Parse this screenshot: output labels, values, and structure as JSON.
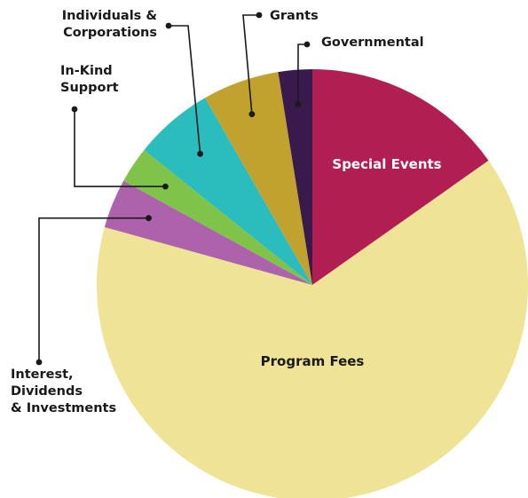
{
  "chart_data": {
    "type": "pie",
    "slices": [
      {
        "label": "Special Events",
        "value": 15.6,
        "color": "#b01e52",
        "label_color": "#ffffff",
        "label_style": "inside"
      },
      {
        "label": "Program Fees",
        "value": 65.7,
        "color": "#efe396",
        "label_color": "#1a1a1a",
        "label_style": "inside"
      },
      {
        "label": "Interest, Dividends & Investments",
        "value": 3.8,
        "color": "#ad63ab",
        "label_color": "#1a1a1a",
        "label_style": "callout"
      },
      {
        "label": "In-Kind Support",
        "value": 2.8,
        "color": "#7fc349",
        "label_color": "#1a1a1a",
        "label_style": "callout"
      },
      {
        "label": "Individuals & Corporations",
        "value": 6.1,
        "color": "#2bbcbd",
        "label_color": "#1a1a1a",
        "label_style": "callout"
      },
      {
        "label": "Grants",
        "value": 5.9,
        "color": "#c2a22f",
        "label_color": "#1a1a1a",
        "label_style": "callout"
      },
      {
        "label": "Governmental",
        "value": 2.6,
        "color": "#3a1a4d",
        "label_color": "#1a1a1a",
        "label_style": "callout"
      }
    ],
    "start_angle": "top",
    "direction": "clockwise"
  }
}
